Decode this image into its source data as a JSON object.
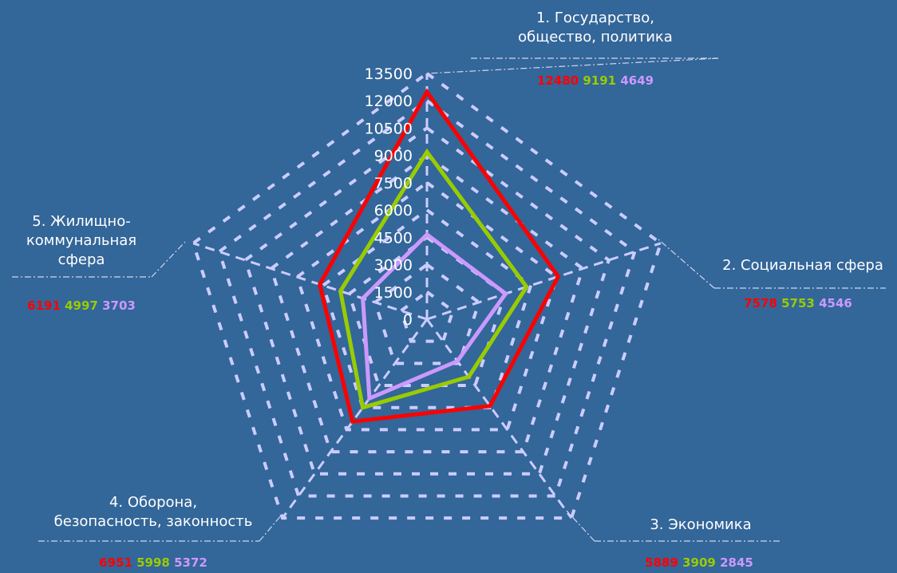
{
  "chart_data": {
    "type": "radar",
    "categories": [
      [
        "1. Государство,",
        "общество, политика"
      ],
      [
        "2. Социальная сфера"
      ],
      [
        "3. Экономика"
      ],
      [
        "4. Оборона,",
        "безопасность, законность"
      ],
      [
        "5. Жилищно-",
        "коммунальная",
        "сфера"
      ]
    ],
    "series": [
      {
        "color": "#ff0000",
        "values": [
          12480,
          7578,
          5889,
          6951,
          6191
        ]
      },
      {
        "color": "#99cc00",
        "values": [
          9191,
          5753,
          3909,
          5998,
          4997
        ]
      },
      {
        "color": "#cc99ff",
        "values": [
          4649,
          4546,
          2845,
          5372,
          3703
        ]
      }
    ],
    "value_labels": [
      [
        "12480",
        "9191",
        "4649"
      ],
      [
        "7578",
        "5753",
        "4546"
      ],
      [
        "5889",
        "3909",
        "2845"
      ],
      [
        "6951",
        "5998",
        "5372"
      ],
      [
        "6191",
        "4997",
        "3703"
      ]
    ],
    "ticks": [
      "0",
      "1500",
      "3000",
      "4500",
      "6000",
      "7500",
      "9000",
      "10500",
      "12000",
      "13500"
    ],
    "rmax": 13500,
    "grid": true,
    "colors": {
      "background": "#336699",
      "grid": "#ccccff",
      "text": "#ffffff",
      "leader": "#d0d8ee"
    }
  }
}
